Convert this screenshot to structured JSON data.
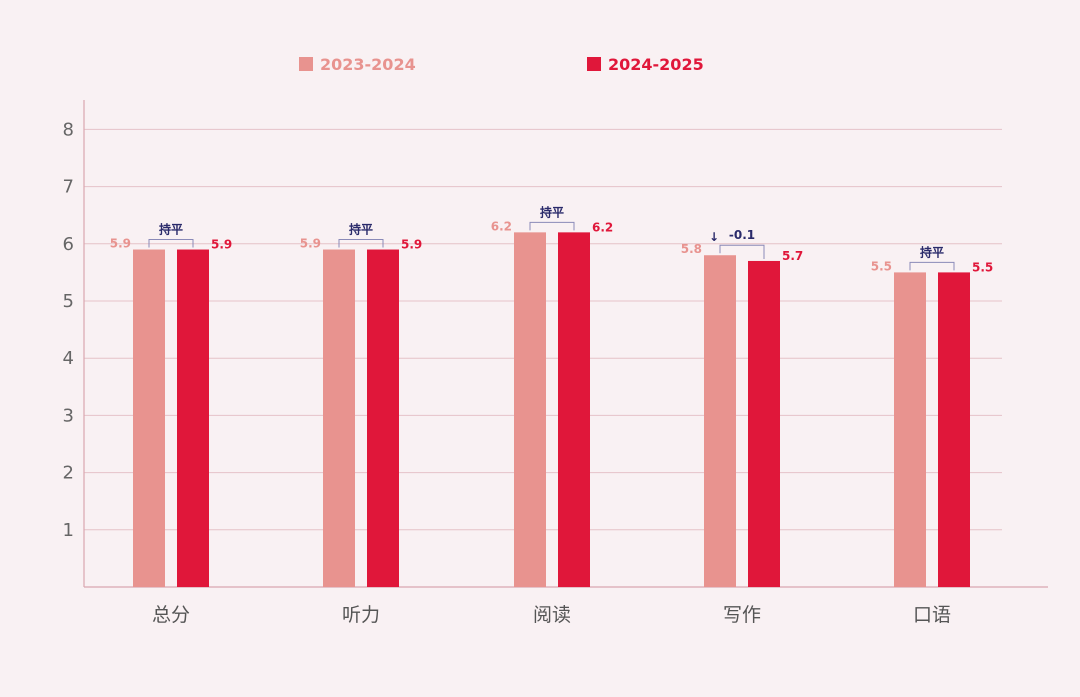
{
  "colors": {
    "series_2023": "#e8938f",
    "series_2024": "#e0173a",
    "grid": "#e6c2c8",
    "axis": "#d9a7b0",
    "annotation": "#2a2a6a",
    "bracket": "#8a8ab8"
  },
  "legend": {
    "series_2023_label": "2023-2024",
    "series_2024_label": "2024-2025",
    "placement": "top-center"
  },
  "chart_data": {
    "type": "bar",
    "categories": [
      "总分",
      "听力",
      "阅读",
      "写作",
      "口语"
    ],
    "series": [
      {
        "name": "2023-2024",
        "values": [
          5.9,
          5.9,
          6.2,
          5.8,
          5.5
        ]
      },
      {
        "name": "2024-2025",
        "values": [
          5.9,
          5.9,
          6.2,
          5.7,
          5.5
        ]
      }
    ],
    "value_labels": {
      "2023-2024": [
        "5.9",
        "5.9",
        "6.2",
        "5.8",
        "5.5"
      ],
      "2024-2025": [
        "5.9",
        "5.9",
        "6.2",
        "5.7",
        "5.5"
      ]
    },
    "annotations": [
      "持平",
      "持平",
      "持平",
      "-0.1",
      "持平"
    ],
    "annotation_arrows": [
      "",
      "",
      "",
      "↓",
      ""
    ],
    "yticks": [
      "1",
      "2",
      "3",
      "4",
      "5",
      "6",
      "7",
      "8"
    ],
    "ylim": [
      0,
      8.5
    ],
    "grid": true
  }
}
